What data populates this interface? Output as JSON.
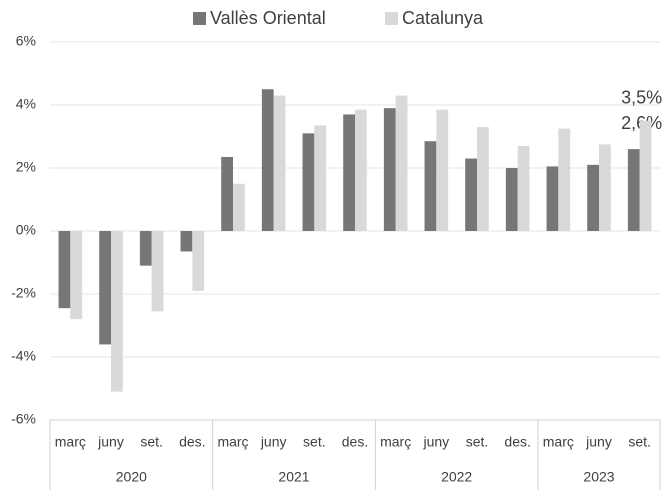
{
  "chart_data": {
    "type": "bar",
    "groups": [
      {
        "name": "2020",
        "categories": [
          "març",
          "juny",
          "set.",
          "des."
        ]
      },
      {
        "name": "2021",
        "categories": [
          "març",
          "juny",
          "set.",
          "des."
        ]
      },
      {
        "name": "2022",
        "categories": [
          "març",
          "juny",
          "set.",
          "des."
        ]
      },
      {
        "name": "2023",
        "categories": [
          "març",
          "juny",
          "set."
        ]
      }
    ],
    "series": [
      {
        "name": "Vallès Oriental",
        "color": "#767676",
        "values": [
          -2.45,
          -3.6,
          -1.1,
          -0.65,
          2.35,
          4.5,
          3.1,
          3.7,
          3.9,
          2.85,
          2.3,
          2.0,
          2.05,
          2.1,
          2.6
        ],
        "value_labels": [
          null,
          null,
          null,
          null,
          null,
          null,
          null,
          null,
          null,
          null,
          null,
          null,
          null,
          null,
          "2,6%"
        ]
      },
      {
        "name": "Catalunya",
        "color": "#d9d9d9",
        "values": [
          -2.8,
          -5.1,
          -2.55,
          -1.9,
          1.5,
          4.3,
          3.35,
          3.85,
          4.3,
          3.85,
          3.3,
          2.7,
          3.25,
          2.75,
          3.5
        ],
        "value_labels": [
          null,
          null,
          null,
          null,
          null,
          null,
          null,
          null,
          null,
          null,
          null,
          null,
          null,
          null,
          "3,5%"
        ]
      }
    ],
    "ylim": [
      -6,
      6
    ],
    "yticks": [
      {
        "value": -6,
        "label": "-6%"
      },
      {
        "value": -4,
        "label": "-4%"
      },
      {
        "value": -2,
        "label": "-2%"
      },
      {
        "value": 0,
        "label": "0%"
      },
      {
        "value": 2,
        "label": "2%"
      },
      {
        "value": 4,
        "label": "4%"
      },
      {
        "value": 6,
        "label": "6%"
      }
    ],
    "grid": true,
    "legend": "top"
  }
}
